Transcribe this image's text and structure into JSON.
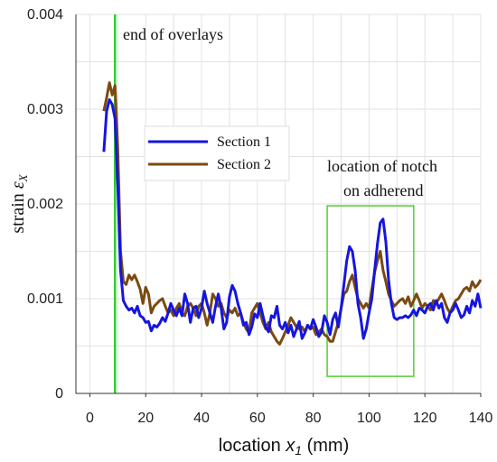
{
  "chart_data": {
    "type": "line",
    "title": "",
    "xlabel_main": "location ",
    "xlabel_var": "x",
    "xlabel_sub": "1",
    "xlabel_unit": " (mm)",
    "ylabel_main": "strain ",
    "ylabel_var": "ε",
    "ylabel_sub": "X",
    "xlim": [
      -5,
      140
    ],
    "ylim": [
      0,
      0.004
    ],
    "xticks": [
      0,
      20,
      40,
      60,
      80,
      100,
      120,
      140
    ],
    "yticks": [
      0,
      0.001,
      0.002,
      0.003,
      0.004
    ],
    "ytick_labels": [
      "0",
      "0.001",
      "0.002",
      "0.003",
      "0.004"
    ],
    "grid": true,
    "legend_position": "upper-left",
    "colors": {
      "section1": "#1515e0",
      "section2": "#7a4a12",
      "overlay_line": "#33cc33",
      "notch_box": "#55cc33",
      "grid": "#e2e2e2"
    },
    "vline_x": 9,
    "notch_box": {
      "x": [
        85,
        116
      ],
      "y": [
        0.00018,
        0.00198
      ]
    },
    "annotations": {
      "overlay": "end of overlays",
      "notch_line1": "location of notch",
      "notch_line2": "on adherend"
    },
    "series": [
      {
        "name": "Section 1",
        "x": [
          5,
          6,
          7,
          8,
          9,
          10,
          11,
          12,
          13,
          14,
          15,
          16,
          17,
          18,
          19,
          20,
          21,
          22,
          23,
          24,
          25,
          26,
          27,
          28,
          29,
          30,
          31,
          32,
          33,
          34,
          35,
          36,
          37,
          38,
          39,
          40,
          41,
          42,
          43,
          44,
          45,
          46,
          47,
          48,
          49,
          50,
          51,
          52,
          53,
          54,
          55,
          56,
          57,
          58,
          59,
          60,
          61,
          62,
          63,
          64,
          65,
          66,
          67,
          68,
          69,
          70,
          71,
          72,
          73,
          74,
          75,
          76,
          77,
          78,
          79,
          80,
          81,
          82,
          83,
          84,
          85,
          86,
          87,
          88,
          89,
          90,
          91,
          92,
          93,
          94,
          95,
          96,
          97,
          98,
          99,
          100,
          101,
          102,
          103,
          104,
          105,
          106,
          107,
          108,
          109,
          110,
          111,
          112,
          113,
          114,
          115,
          116,
          117,
          118,
          119,
          120,
          121,
          122,
          123,
          124,
          125,
          126,
          127,
          128,
          129,
          130,
          131,
          132,
          133,
          134,
          135,
          136,
          137,
          138,
          139,
          140
        ],
        "y": [
          0.00255,
          0.00298,
          0.0031,
          0.00305,
          0.0029,
          0.0022,
          0.0013,
          0.00098,
          0.00092,
          0.00088,
          0.0009,
          0.00085,
          0.00092,
          0.00082,
          0.0008,
          0.00075,
          0.00076,
          0.00066,
          0.00072,
          0.0007,
          0.00074,
          0.0008,
          0.00076,
          0.00085,
          0.00095,
          0.00088,
          0.00082,
          0.0009,
          0.00082,
          0.00105,
          0.00095,
          0.00075,
          0.0009,
          0.00092,
          0.0008,
          0.0009,
          0.00108,
          0.00095,
          0.00085,
          0.00075,
          0.00092,
          0.00105,
          0.0009,
          0.00068,
          0.00075,
          0.00102,
          0.00114,
          0.00108,
          0.00095,
          0.00085,
          0.00072,
          0.00075,
          0.00062,
          0.0007,
          0.00084,
          0.0008,
          0.00095,
          0.00082,
          0.0007,
          0.00065,
          0.00082,
          0.0008,
          0.00092,
          0.00072,
          0.00068,
          0.00075,
          0.00064,
          0.00072,
          0.0006,
          0.00068,
          0.00076,
          0.00058,
          0.00064,
          0.00072,
          0.00068,
          0.00078,
          0.0007,
          0.0006,
          0.00065,
          0.00082,
          0.00075,
          0.00062,
          0.00078,
          0.00085,
          0.0007,
          0.0009,
          0.00115,
          0.0014,
          0.00155,
          0.0015,
          0.0013,
          0.00095,
          0.0008,
          0.00058,
          0.00068,
          0.00085,
          0.001,
          0.0013,
          0.00158,
          0.0018,
          0.00184,
          0.0016,
          0.0012,
          0.00095,
          0.0008,
          0.00078,
          0.0008,
          0.0008,
          0.00082,
          0.0008,
          0.00083,
          0.00088,
          0.00082,
          0.0009,
          0.00088,
          0.00085,
          0.00092,
          0.00095,
          0.00088,
          0.00098,
          0.0009,
          0.00095,
          0.0008,
          0.00075,
          0.00085,
          0.00088,
          0.00095,
          0.00088,
          0.0008,
          0.00083,
          0.00092,
          0.00085,
          0.00098,
          0.00092,
          0.00105,
          0.0009
        ]
      },
      {
        "name": "Section 2",
        "x": [
          5,
          6,
          7,
          8,
          9,
          10,
          11,
          12,
          13,
          14,
          15,
          16,
          17,
          18,
          19,
          20,
          21,
          22,
          23,
          24,
          25,
          26,
          27,
          28,
          29,
          30,
          31,
          32,
          33,
          34,
          35,
          36,
          37,
          38,
          39,
          40,
          41,
          42,
          43,
          44,
          45,
          46,
          47,
          48,
          49,
          50,
          51,
          52,
          53,
          54,
          55,
          56,
          57,
          58,
          59,
          60,
          61,
          62,
          63,
          64,
          65,
          66,
          67,
          68,
          69,
          70,
          71,
          72,
          73,
          74,
          75,
          76,
          77,
          78,
          79,
          80,
          81,
          82,
          83,
          84,
          85,
          86,
          87,
          88,
          89,
          90,
          91,
          92,
          93,
          94,
          95,
          96,
          97,
          98,
          99,
          100,
          101,
          102,
          103,
          104,
          105,
          106,
          107,
          108,
          109,
          110,
          111,
          112,
          113,
          114,
          115,
          116,
          117,
          118,
          119,
          120,
          121,
          122,
          123,
          124,
          125,
          126,
          127,
          128,
          129,
          130,
          131,
          132,
          133,
          134,
          135,
          136,
          137,
          138,
          139,
          140
        ],
        "y": [
          0.00298,
          0.00312,
          0.00328,
          0.00315,
          0.00325,
          0.0026,
          0.0015,
          0.00118,
          0.00115,
          0.00125,
          0.0012,
          0.00125,
          0.00118,
          0.0011,
          0.00095,
          0.00112,
          0.00105,
          0.00085,
          0.00092,
          0.00095,
          0.00098,
          0.001,
          0.00092,
          0.00085,
          0.00088,
          0.00082,
          0.0009,
          0.00095,
          0.00085,
          0.00082,
          0.00092,
          0.00095,
          0.0009,
          0.00082,
          0.00092,
          0.00095,
          0.00085,
          0.00072,
          0.00085,
          0.00105,
          0.001,
          0.00092,
          0.00095,
          0.00085,
          0.0008,
          0.00088,
          0.00085,
          0.0009,
          0.00082,
          0.00085,
          0.00075,
          0.00068,
          0.00064,
          0.00085,
          0.0009,
          0.00095,
          0.00085,
          0.00075,
          0.00068,
          0.00075,
          0.00065,
          0.0006,
          0.00055,
          0.00052,
          0.00058,
          0.00065,
          0.00072,
          0.0008,
          0.00075,
          0.0007,
          0.00068,
          0.0007,
          0.00065,
          0.00072,
          0.00068,
          0.0007,
          0.00062,
          0.00065,
          0.00068,
          0.00062,
          0.0006,
          0.00055,
          0.00055,
          0.00065,
          0.00075,
          0.0009,
          0.00105,
          0.00108,
          0.00118,
          0.00125,
          0.00112,
          0.001,
          0.00095,
          0.0009,
          0.00095,
          0.0009,
          0.0011,
          0.00128,
          0.0014,
          0.0015,
          0.0013,
          0.00118,
          0.00105,
          0.00098,
          0.00092,
          0.00095,
          0.00098,
          0.001,
          0.00095,
          0.00102,
          0.00092,
          0.00098,
          0.00105,
          0.00098,
          0.0009,
          0.00095,
          0.00092,
          0.00088,
          0.00098,
          0.00095,
          0.001,
          0.00105,
          0.00098,
          0.0009,
          0.00085,
          0.00092,
          0.00098,
          0.001,
          0.00105,
          0.0011,
          0.00112,
          0.00108,
          0.00118,
          0.00112,
          0.00115,
          0.0012
        ]
      }
    ]
  }
}
